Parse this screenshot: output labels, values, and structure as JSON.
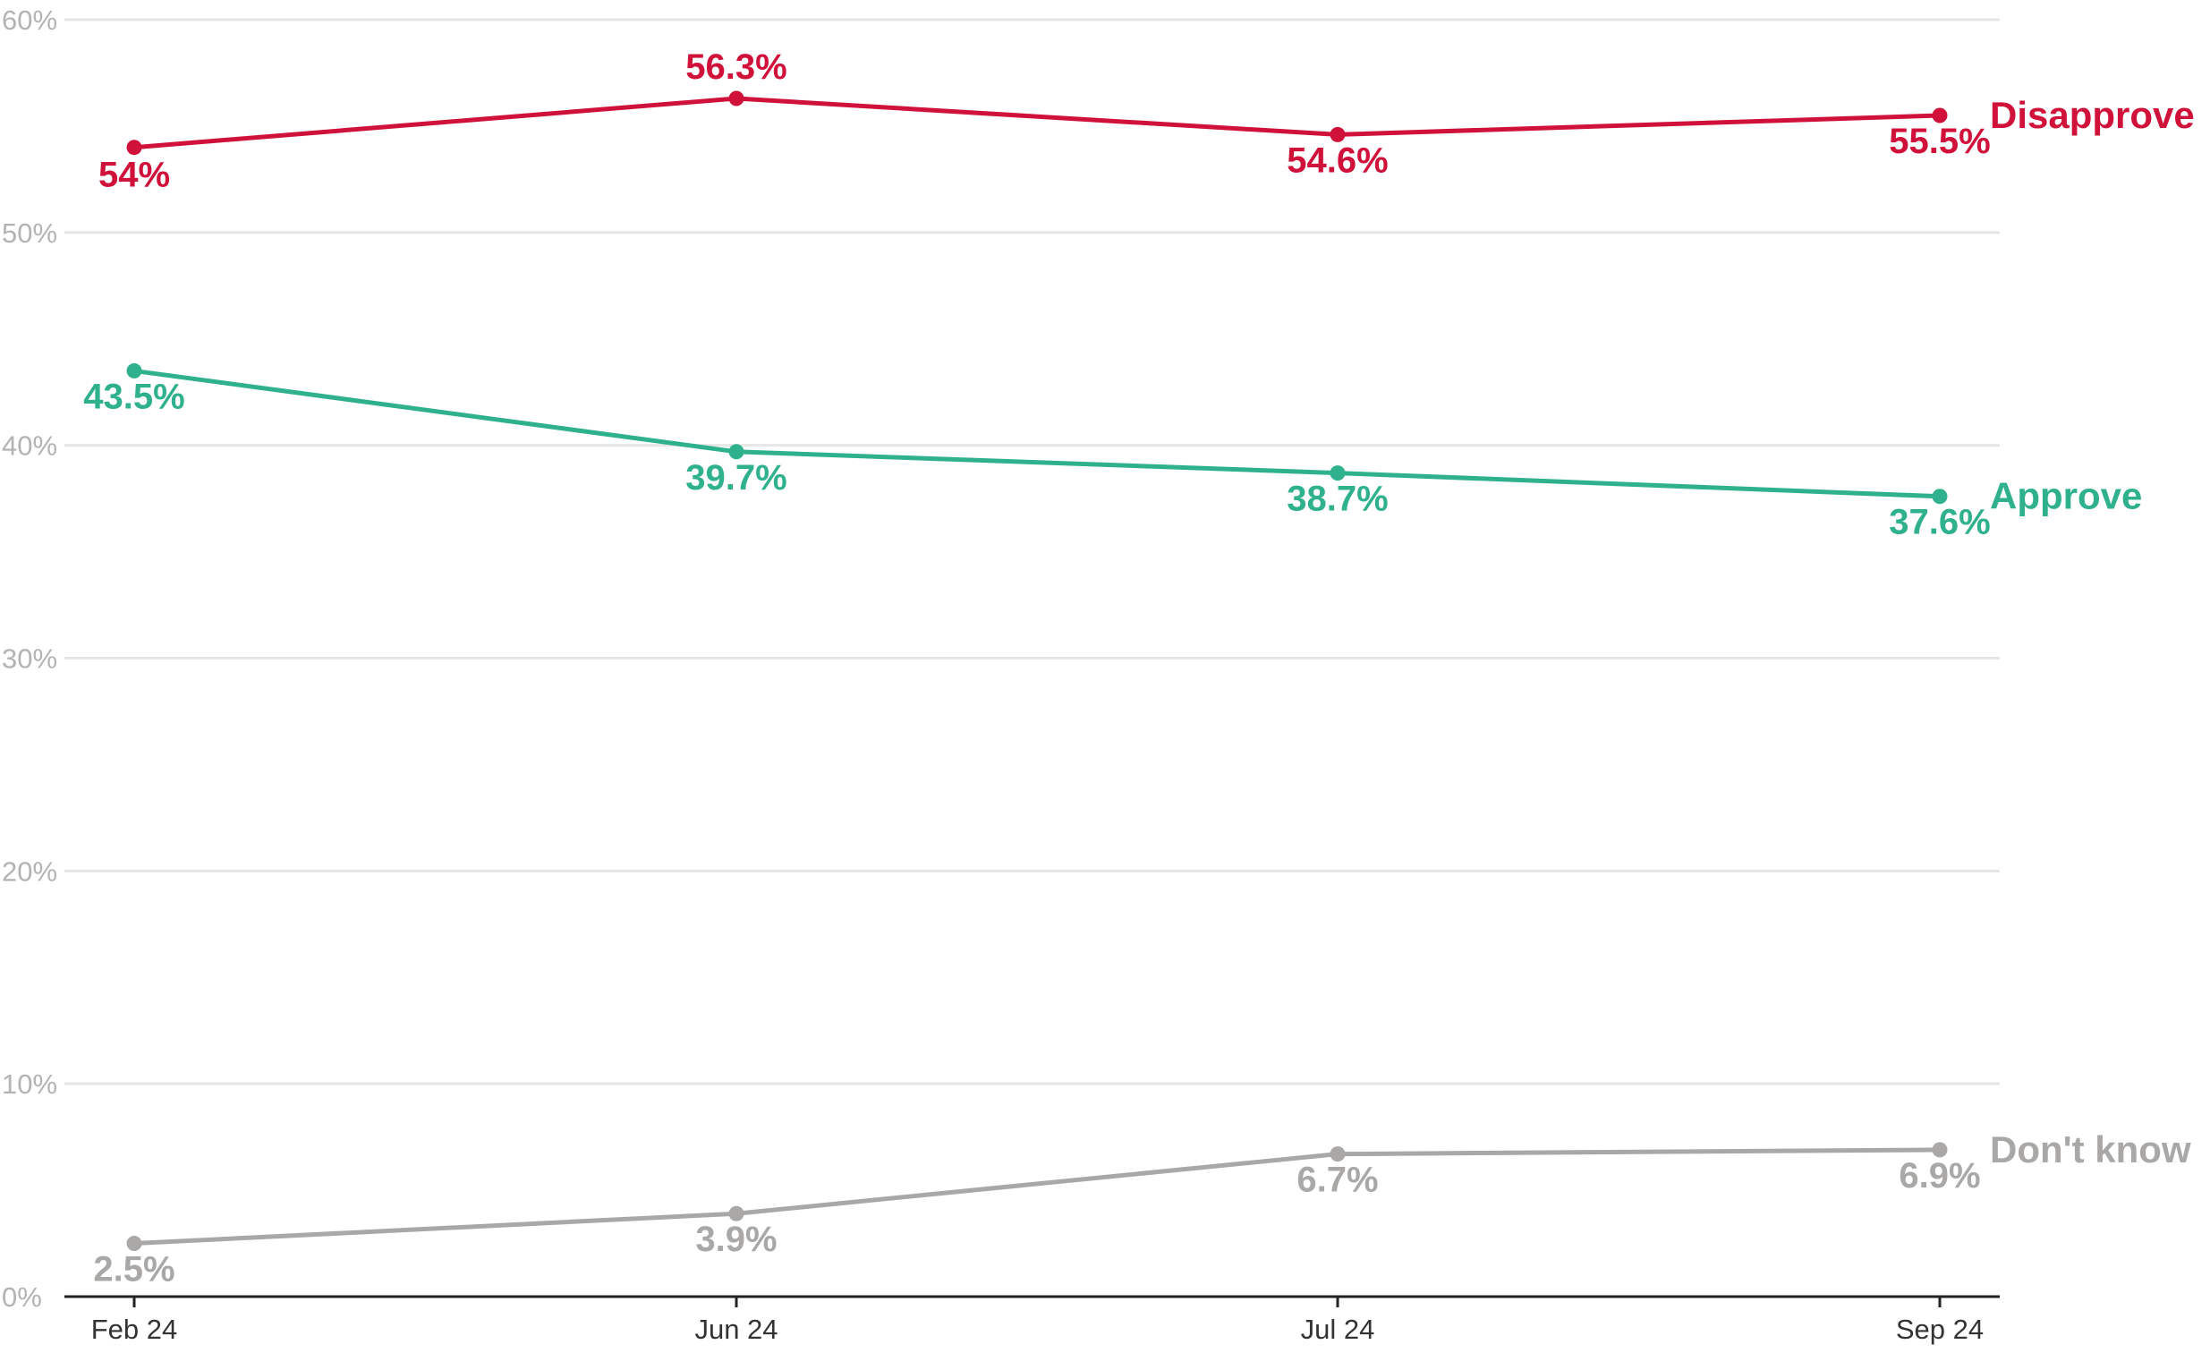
{
  "chart_data": {
    "type": "line",
    "title": "",
    "xlabel": "",
    "ylabel": "",
    "x": [
      "Feb 24",
      "Jun 24",
      "Jul 24",
      "Sep 24"
    ],
    "ylim": [
      0,
      60
    ],
    "y_ticks": [
      0,
      10,
      20,
      30,
      40,
      50,
      60
    ],
    "y_tick_labels": [
      "0%",
      "10%",
      "20%",
      "30%",
      "40%",
      "50%",
      "60%"
    ],
    "grid": true,
    "legend": "none (series named by labels at the right end of each line)",
    "series": [
      {
        "name": "Disapprove",
        "color": "#d0123b",
        "values": [
          54,
          56.3,
          54.6,
          55.5
        ],
        "labels": [
          "54%",
          "56.3%",
          "54.6%",
          "55.5%"
        ]
      },
      {
        "name": "Approve",
        "color": "#2fb18e",
        "values": [
          43.5,
          39.7,
          38.7,
          37.6
        ],
        "labels": [
          "43.5%",
          "39.7%",
          "38.7%",
          "37.6%"
        ]
      },
      {
        "name": "Don't know",
        "color": "#aaa8a6",
        "values": [
          2.5,
          3.9,
          6.7,
          6.9
        ],
        "labels": [
          "2.5%",
          "3.9%",
          "6.7%",
          "6.9%"
        ]
      }
    ]
  },
  "colors": {
    "gridline": "#e6e6e6",
    "tick_text_y": "#b3b3b3",
    "tick_text_x": "#333333",
    "axis_line": "#222222"
  }
}
